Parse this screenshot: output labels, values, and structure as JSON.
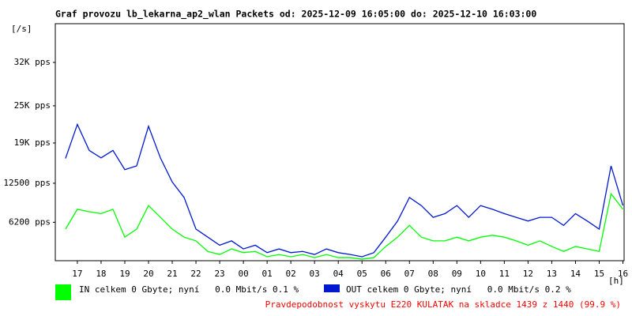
{
  "chart_data": {
    "type": "line",
    "title": "Graf provozu lb_lekarna_ap2_wlan Packets od: 2025-12-09 16:05:00 do: 2025-12-10 16:03:00",
    "y_label": "[/s]",
    "x_label": "[h]",
    "note": "Pravdepodobnost vyskytu E220 KULATAK na skladce 1439 z 1440 (99.9 %)",
    "x": [
      16.5,
      17,
      17.5,
      18,
      18.5,
      19,
      19.5,
      20,
      20.5,
      21,
      21.5,
      22,
      22.5,
      23,
      23.5,
      24,
      24.5,
      25,
      25.5,
      26,
      26.5,
      27,
      27.5,
      28,
      28.5,
      29,
      29.5,
      30,
      30.5,
      31,
      31.5,
      32,
      32.5,
      33,
      33.5,
      34,
      34.5,
      35,
      35.5,
      36,
      36.5,
      37,
      37.5,
      38,
      38.5,
      39,
      39.5,
      40
    ],
    "series": [
      {
        "name": "IN celkem 0 Gbyte; nyní   0.0 Mbit/s 0.1 %",
        "color": "#00ff00",
        "values": [
          5100,
          8300,
          7900,
          7600,
          8300,
          3800,
          5100,
          8900,
          7000,
          5100,
          3800,
          3200,
          1500,
          1000,
          1900,
          1300,
          1500,
          640,
          1000,
          640,
          1000,
          500,
          1000,
          500,
          500,
          250,
          500,
          2300,
          3800,
          5700,
          3800,
          3200,
          3200,
          3800,
          3200,
          3800,
          4100,
          3800,
          3200,
          2500,
          3200,
          2300,
          1500,
          2300,
          1900,
          1500,
          10800,
          8300
        ]
      },
      {
        "name": "OUT celkem 0 Gbyte; nyní   0.0 Mbit/s 0.2 %",
        "color": "#0018d0",
        "values": [
          16500,
          22000,
          17800,
          16600,
          17800,
          14700,
          15300,
          21700,
          16600,
          12700,
          10200,
          5100,
          3800,
          2500,
          3200,
          1900,
          2500,
          1300,
          1900,
          1300,
          1500,
          1000,
          1900,
          1300,
          1000,
          640,
          1300,
          3800,
          6400,
          10200,
          8900,
          7000,
          7600,
          8900,
          7000,
          8900,
          8300,
          7600,
          7000,
          6400,
          7000,
          7000,
          5700,
          7600,
          6400,
          5100,
          15300,
          8900
        ]
      }
    ],
    "xlim": [
      16.07,
      40.05
    ],
    "xticks": [
      {
        "value": 17,
        "label": "17"
      },
      {
        "value": 18,
        "label": "18"
      },
      {
        "value": 19,
        "label": "19"
      },
      {
        "value": 20,
        "label": "20"
      },
      {
        "value": 21,
        "label": "21"
      },
      {
        "value": 22,
        "label": "22"
      },
      {
        "value": 23,
        "label": "23"
      },
      {
        "value": 24,
        "label": "00"
      },
      {
        "value": 25,
        "label": "01"
      },
      {
        "value": 26,
        "label": "02"
      },
      {
        "value": 27,
        "label": "03"
      },
      {
        "value": 28,
        "label": "04"
      },
      {
        "value": 29,
        "label": "05"
      },
      {
        "value": 30,
        "label": "06"
      },
      {
        "value": 31,
        "label": "07"
      },
      {
        "value": 32,
        "label": "08"
      },
      {
        "value": 33,
        "label": "09"
      },
      {
        "value": 34,
        "label": "10"
      },
      {
        "value": 35,
        "label": "11"
      },
      {
        "value": 36,
        "label": "12"
      },
      {
        "value": 37,
        "label": "13"
      },
      {
        "value": 38,
        "label": "14"
      },
      {
        "value": 39,
        "label": "15"
      },
      {
        "value": 40,
        "label": "16"
      }
    ],
    "ylim": [
      0,
      38250
    ],
    "yticks": [
      {
        "value": 6200,
        "label": "6200 pps"
      },
      {
        "value": 12500,
        "label": "12500 pps"
      },
      {
        "value": 19000,
        "label": "19K pps"
      },
      {
        "value": 25000,
        "label": "25K pps"
      },
      {
        "value": 32000,
        "label": "32K pps"
      }
    ]
  }
}
